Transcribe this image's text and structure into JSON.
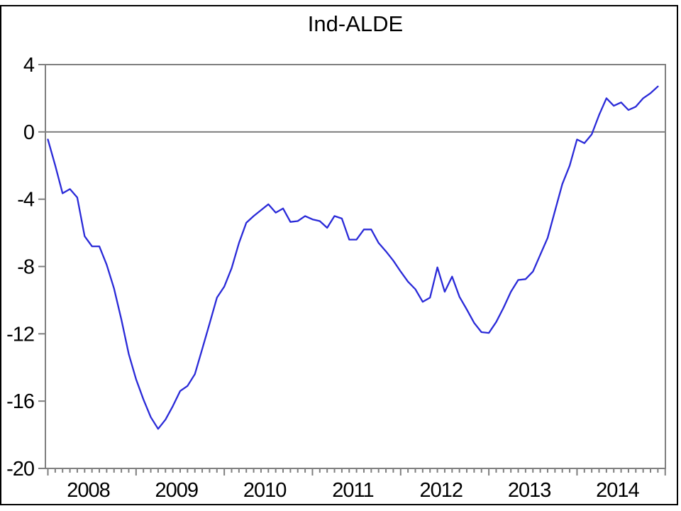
{
  "title": "Ind-ALDE",
  "chart_data": {
    "type": "line",
    "title": "Ind-ALDE",
    "frequency": "monthly",
    "x_start": "2008M01",
    "x_end": "2014M12",
    "x_tick_years": [
      "2008",
      "2009",
      "2010",
      "2011",
      "2012",
      "2013",
      "2014"
    ],
    "y_tick_labels": [
      "4",
      "0",
      "-4",
      "-8",
      "-12",
      "-16",
      "-20"
    ],
    "y_ticks": [
      4,
      0,
      -4,
      -8,
      -12,
      -16,
      -20
    ],
    "ylim": [
      -20,
      4
    ],
    "zero_line": true,
    "grid": false,
    "legend": "none",
    "line_color": "#2a2ad8",
    "frame_color": "#7f7f7f",
    "label_color": "#000000",
    "values": [
      -0.45,
      -2.0,
      -3.65,
      -3.4,
      -3.9,
      -6.2,
      -6.8,
      -6.8,
      -7.9,
      -9.3,
      -11.15,
      -13.2,
      -14.7,
      -15.9,
      -16.95,
      -17.65,
      -17.1,
      -16.3,
      -15.4,
      -15.1,
      -14.4,
      -12.9,
      -11.4,
      -9.85,
      -9.2,
      -8.1,
      -6.6,
      -5.4,
      -5.0,
      -4.65,
      -4.3,
      -4.8,
      -4.55,
      -5.35,
      -5.3,
      -5.0,
      -5.2,
      -5.3,
      -5.7,
      -5.0,
      -5.15,
      -6.4,
      -6.4,
      -5.8,
      -5.8,
      -6.6,
      -7.1,
      -7.65,
      -8.3,
      -8.9,
      -9.35,
      -10.1,
      -9.85,
      -8.05,
      -9.5,
      -8.6,
      -9.8,
      -10.55,
      -11.35,
      -11.9,
      -11.95,
      -11.3,
      -10.45,
      -9.5,
      -8.8,
      -8.75,
      -8.3,
      -7.3,
      -6.3,
      -4.7,
      -3.1,
      -2.0,
      -0.45,
      -0.67,
      -0.15,
      1.0,
      2.0,
      1.55,
      1.75,
      1.3,
      1.5,
      2.0,
      2.3,
      2.7
    ]
  }
}
